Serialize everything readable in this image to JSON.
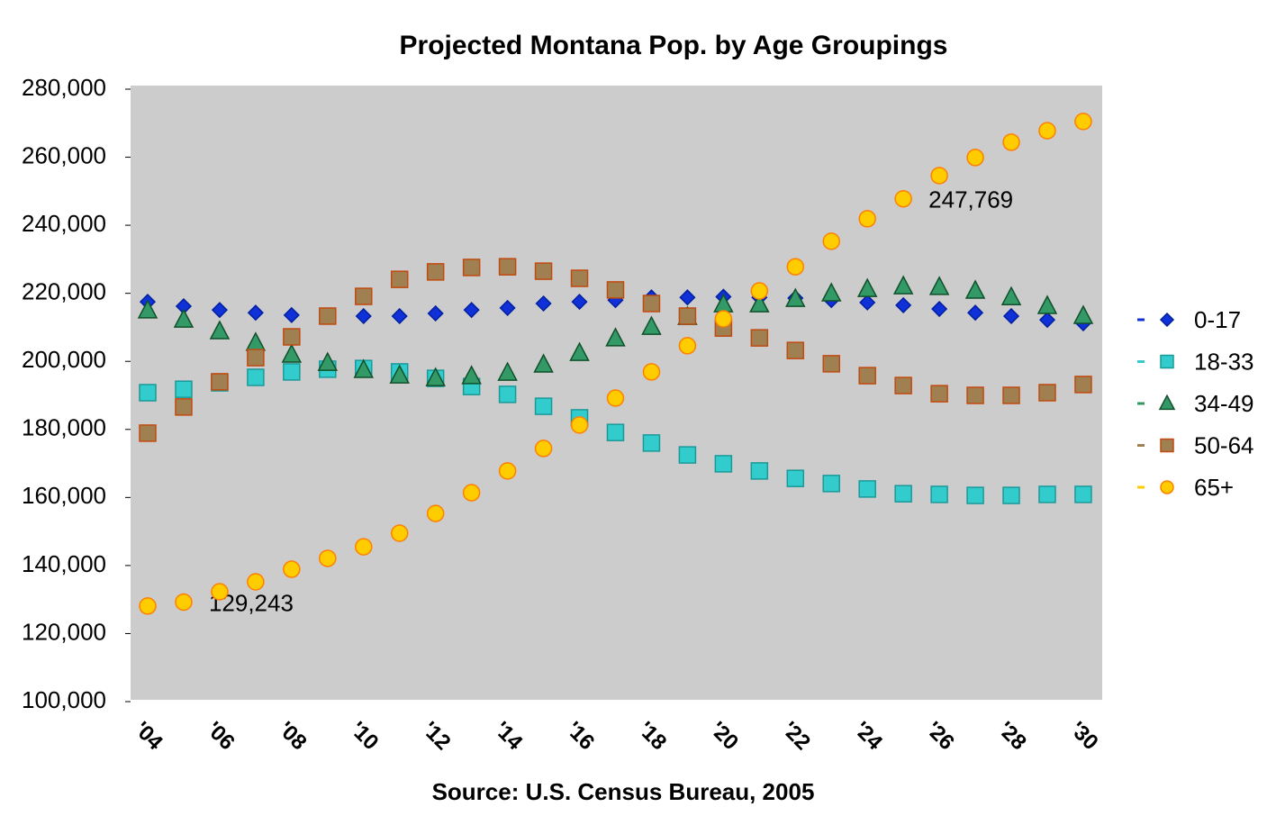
{
  "chart_data": {
    "type": "scatter",
    "title": "Projected Montana Pop. by Age Groupings",
    "caption": "Source: U.S. Census Bureau, 2005",
    "categories": [
      "'04",
      null,
      "'06",
      null,
      "'08",
      null,
      "'10",
      null,
      "'12",
      null,
      "'14",
      null,
      "'16",
      null,
      "'18",
      null,
      "'20",
      null,
      "'22",
      null,
      "'24",
      null,
      "'26",
      null,
      "'28",
      null,
      "'30"
    ],
    "ylim": [
      100000,
      280000
    ],
    "yticks": [
      {
        "value": 100000,
        "label": "100,000"
      },
      {
        "value": 120000,
        "label": "120,000"
      },
      {
        "value": 140000,
        "label": "140,000"
      },
      {
        "value": 160000,
        "label": "160,000"
      },
      {
        "value": 180000,
        "label": "180,000"
      },
      {
        "value": 200000,
        "label": "200,000"
      },
      {
        "value": 220000,
        "label": "220,000"
      },
      {
        "value": 240000,
        "label": "240,000"
      },
      {
        "value": 260000,
        "label": "260,000"
      },
      {
        "value": 280000,
        "label": "280,000"
      }
    ],
    "grid": false,
    "legend": "right",
    "series": [
      {
        "name": "0-17",
        "color": "#1030d8",
        "marker": "diamond",
        "values": [
          217500,
          216200,
          215100,
          214300,
          213600,
          213500,
          213300,
          213300,
          214100,
          215100,
          215700,
          217000,
          217500,
          218000,
          218800,
          218800,
          219000,
          218800,
          218600,
          218000,
          217300,
          216500,
          215400,
          214300,
          213300,
          212200,
          211200
        ]
      },
      {
        "name": "18-33",
        "color": "#33cccc",
        "marker": "square",
        "values": [
          190800,
          191800,
          193700,
          195300,
          196900,
          197700,
          197900,
          196900,
          195000,
          192600,
          190300,
          186800,
          183400,
          179100,
          176000,
          172500,
          169900,
          167800,
          165600,
          164100,
          162500,
          161100,
          160900,
          160600,
          160600,
          160900,
          160900
        ]
      },
      {
        "name": "34-49",
        "color": "#339966",
        "marker": "triangle",
        "values": [
          214900,
          212200,
          208800,
          205400,
          201900,
          199500,
          197400,
          195800,
          195000,
          195600,
          196600,
          199000,
          202400,
          206700,
          210100,
          213000,
          216700,
          216700,
          218300,
          219900,
          221200,
          222000,
          221800,
          220700,
          218800,
          216200,
          213300
        ]
      },
      {
        "name": "50-64",
        "color": "#a08050",
        "marker": "square",
        "values": [
          178900,
          186600,
          194000,
          201100,
          207200,
          213300,
          219100,
          224100,
          226300,
          227600,
          227800,
          226500,
          224400,
          221000,
          217000,
          213300,
          209800,
          206900,
          203200,
          199300,
          195800,
          192900,
          190500,
          190000,
          190000,
          190800,
          193200
        ]
      },
      {
        "name": "65+",
        "color": "#ffcc00",
        "marker": "circle",
        "values": [
          128100,
          129243,
          132300,
          135200,
          138900,
          142100,
          145500,
          149500,
          155300,
          161400,
          167800,
          174400,
          181300,
          189200,
          196900,
          204600,
          212500,
          220700,
          227800,
          235300,
          241900,
          247769,
          254600,
          259900,
          264400,
          267800,
          270500
        ],
        "value_labels": [
          null,
          "129,243",
          null,
          null,
          null,
          null,
          null,
          null,
          null,
          null,
          null,
          null,
          null,
          null,
          null,
          null,
          null,
          null,
          null,
          null,
          null,
          "247,769",
          null,
          null,
          null,
          null,
          null
        ]
      }
    ]
  }
}
